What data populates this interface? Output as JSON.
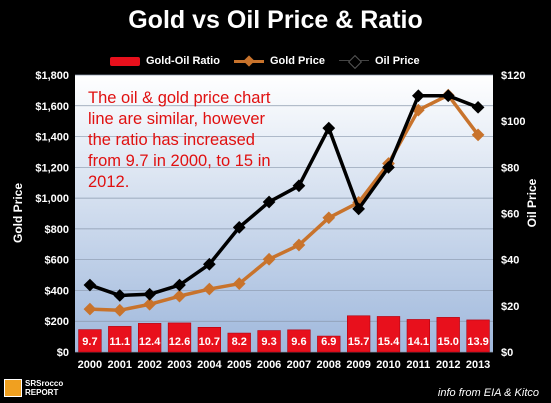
{
  "chart_data": {
    "type": "bar",
    "title": "Gold vs Oil Price & Ratio",
    "categories": [
      "2000",
      "2001",
      "2002",
      "2003",
      "2004",
      "2005",
      "2006",
      "2007",
      "2008",
      "2009",
      "2010",
      "2011",
      "2012",
      "2013"
    ],
    "series": [
      {
        "name": "Gold-Oil Ratio",
        "type": "bar",
        "axis": "right",
        "values": [
          9.7,
          11.1,
          12.4,
          12.6,
          10.7,
          8.2,
          9.3,
          9.6,
          6.9,
          15.7,
          15.4,
          14.1,
          15.0,
          13.9
        ],
        "labels": [
          "9.7",
          "11.1",
          "12.4",
          "12.6",
          "10.7",
          "8.2",
          "9.3",
          "9.6",
          "6.9",
          "15.7",
          "15.4",
          "14.1",
          "15.0",
          "13.9"
        ]
      },
      {
        "name": "Gold Price",
        "type": "line",
        "axis": "left",
        "values": [
          279,
          271,
          310,
          363,
          409,
          444,
          603,
          695,
          872,
          972,
          1225,
          1572,
          1669,
          1411
        ]
      },
      {
        "name": "Oil Price",
        "type": "line",
        "axis": "left",
        "values": [
          29,
          24.5,
          25,
          29,
          38,
          54,
          65,
          72,
          97,
          62,
          80,
          111,
          111,
          106
        ]
      }
    ],
    "ylabel": "Gold Price",
    "y2label": "Oil Price",
    "ylim": [
      0,
      1800
    ],
    "y2lim": [
      0,
      120
    ],
    "yticks": [
      "$0",
      "$200",
      "$400",
      "$600",
      "$800",
      "$1,000",
      "$1,200",
      "$1,400",
      "$1,600",
      "$1,800"
    ],
    "y2ticks": [
      "$0",
      "$20",
      "$40",
      "$60",
      "$80",
      "$100",
      "$120"
    ],
    "legend": "top",
    "grid": true,
    "colors": {
      "ratio": "#e8101c",
      "gold": "#c8732c",
      "oil": "#000000",
      "plot_bg_top": "#ffffff",
      "plot_bg_bottom": "#9fb8dc"
    }
  },
  "annotation": "The oil & gold price chart line are similar, however the ratio has increased from 9.7 in 2000, to 15 in 2012.",
  "source": "info from EIA & Kitco",
  "logo": {
    "line1": "SRSrocco",
    "line2": "REPORT"
  }
}
